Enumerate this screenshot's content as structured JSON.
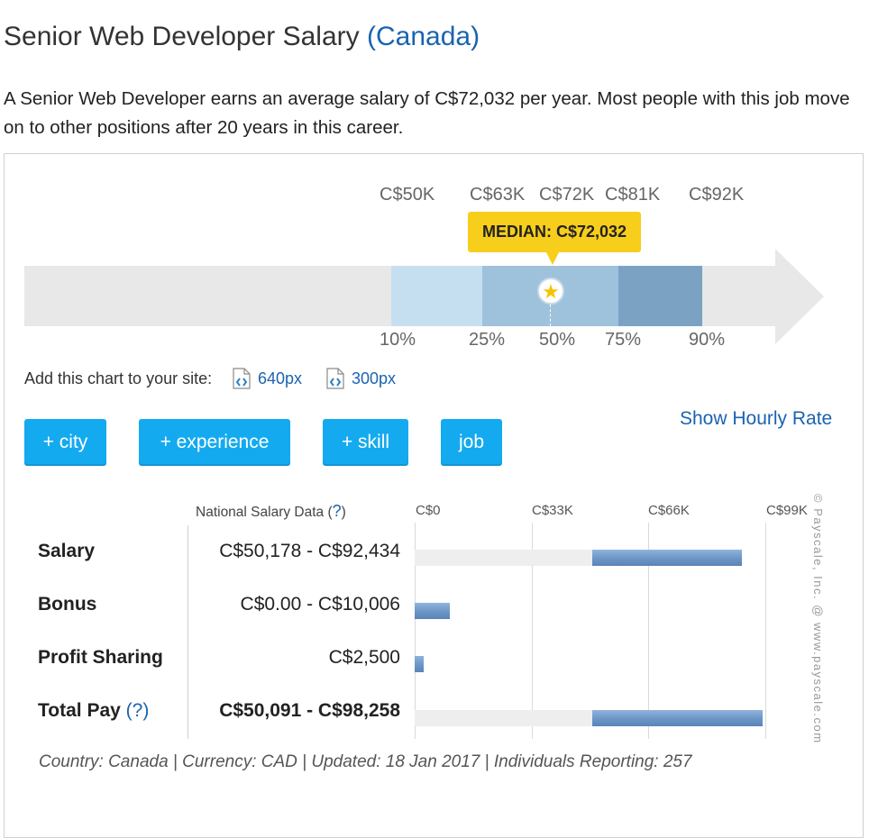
{
  "header": {
    "title": "Senior Web Developer Salary",
    "location": "(Canada)",
    "intro": "A Senior Web Developer earns an average salary of C$72,032 per year. Most people with this job move on to other positions after 20 years in this career."
  },
  "chart_data": [
    {
      "type": "bar",
      "orientation": "horizontal",
      "title": "",
      "percentiles": [
        "10%",
        "25%",
        "50%",
        "75%",
        "90%"
      ],
      "percentile_values": [
        50000,
        63000,
        72000,
        81000,
        92000
      ],
      "value_labels": [
        "C$50K",
        "C$63K",
        "C$72K",
        "C$81K",
        "C$92K"
      ],
      "median_label": "MEDIAN: C$72,032",
      "median_value": 72032,
      "xlim": [
        0,
        99000
      ],
      "colors": {
        "p10_p25": "#c6dff0",
        "p25_p75": "#9fc2dc",
        "p75_p90": "#7ba2c3",
        "track": "#e8e8e8",
        "median_box": "#f7ce1b",
        "star": "#f5c400"
      }
    },
    {
      "type": "bar",
      "orientation": "horizontal",
      "title": "",
      "header": "National Salary Data",
      "help_link": "?",
      "axis_ticks": [
        "C$0",
        "C$33K",
        "C$66K",
        "C$99K"
      ],
      "axis_tick_values": [
        0,
        33000,
        66000,
        99000
      ],
      "xlim": [
        0,
        99000
      ],
      "grid": true,
      "rows": [
        {
          "label": "Salary",
          "range_text": "C$50,178 - C$92,434",
          "min": 50178,
          "max": 92434,
          "show_track": true
        },
        {
          "label": "Bonus",
          "range_text": "C$0.00 - C$10,006",
          "min": 0,
          "max": 10006,
          "show_track": false
        },
        {
          "label": "Profit Sharing",
          "range_text": "C$2,500",
          "min": 0,
          "max": 2500,
          "show_track": false
        },
        {
          "label": "Total Pay",
          "help": "(?)",
          "range_text": "C$50,091 - C$98,258",
          "min": 50091,
          "max": 98258,
          "show_track": true
        }
      ],
      "bar_color": "#6c95c6"
    }
  ],
  "embed": {
    "label": "Add this chart to your site:",
    "links": [
      "640px",
      "300px"
    ]
  },
  "filters": {
    "buttons": [
      "+ city",
      "+ experience",
      "+ skill",
      "job"
    ],
    "hourly_link": "Show Hourly Rate"
  },
  "watermark": "© Payscale, Inc. @ www.payscale.com",
  "footer": "Country: Canada | Currency: CAD | Updated: 18 Jan 2017 | Individuals Reporting: 257"
}
